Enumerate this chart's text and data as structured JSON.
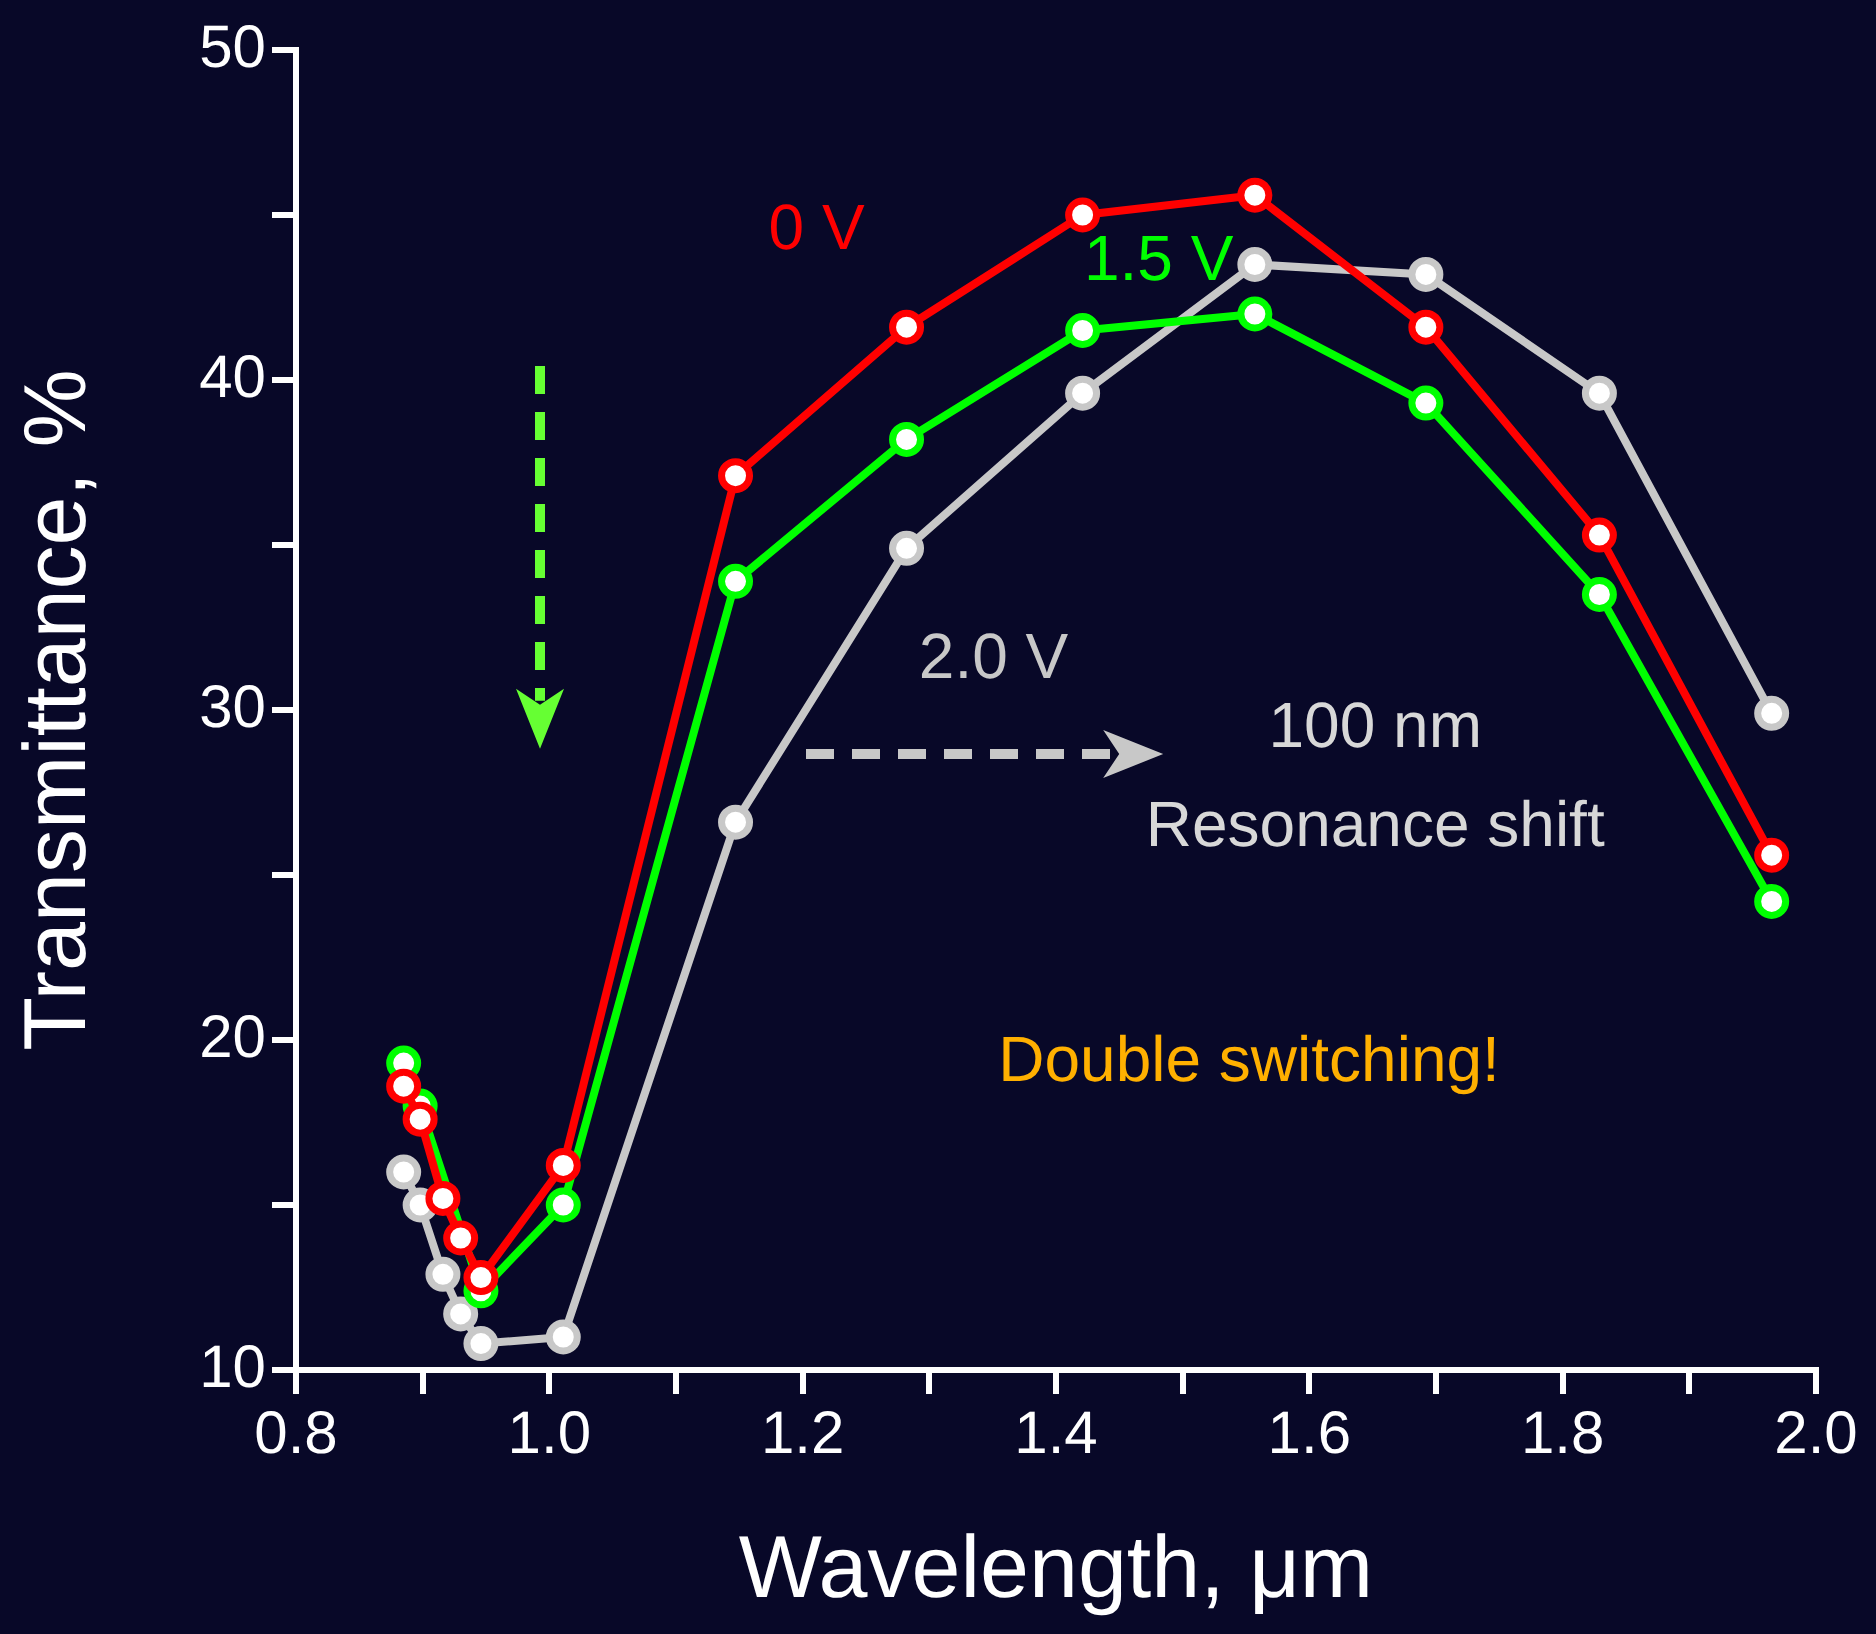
{
  "chart_data": {
    "type": "line",
    "xlabel": "Wavelength, μm",
    "ylabel": "Transmittance, %",
    "xlim": [
      0.8,
      2.0
    ],
    "ylim": [
      10,
      50
    ],
    "xticks": [
      0.8,
      {
        "value": 0.9,
        "label": null
      },
      {
        "value": 1,
        "label": "1.0"
      },
      {
        "value": 1.1,
        "label": null
      },
      1.2,
      {
        "value": 1.3,
        "label": null
      },
      1.4,
      {
        "value": 1.5,
        "label": null
      },
      1.6,
      {
        "value": 1.7,
        "label": null
      },
      1.8,
      {
        "value": 1.9,
        "label": null
      },
      {
        "value": 2,
        "label": "2.0"
      }
    ],
    "yticks": [
      10,
      {
        "value": 15,
        "label": null
      },
      20,
      {
        "value": 25,
        "label": null
      },
      30,
      {
        "value": 35,
        "label": null
      },
      40,
      {
        "value": 45,
        "label": null
      },
      50
    ],
    "grid": false,
    "legend": false,
    "marker": "circle",
    "line_style": "solid",
    "x": [
      0.885,
      0.898,
      0.916,
      0.93,
      0.946,
      1.011,
      1.147,
      1.282,
      1.421,
      1.557,
      1.692,
      1.829,
      1.965
    ],
    "series": [
      {
        "name": "0 V",
        "color": "#ff0000",
        "values": [
          18.6,
          17.6,
          15.2,
          14.0,
          12.8,
          16.2,
          37.1,
          41.6,
          45.0,
          45.6,
          41.6,
          35.3,
          25.6
        ]
      },
      {
        "name": "1.5 V",
        "color": "#00ff00",
        "values": [
          19.3,
          18.0,
          null,
          null,
          12.4,
          15.0,
          33.9,
          38.2,
          41.5,
          42.0,
          39.3,
          33.5,
          24.2
        ]
      },
      {
        "name": "2.0 V",
        "color": "#c8c8c8",
        "values": [
          16.0,
          15.0,
          12.9,
          11.7,
          10.8,
          11.0,
          26.6,
          34.9,
          39.6,
          43.5,
          43.2,
          39.6,
          29.9
        ]
      }
    ],
    "annotations": [
      "100 nm",
      "Resonance shift",
      "Double switching!"
    ]
  }
}
